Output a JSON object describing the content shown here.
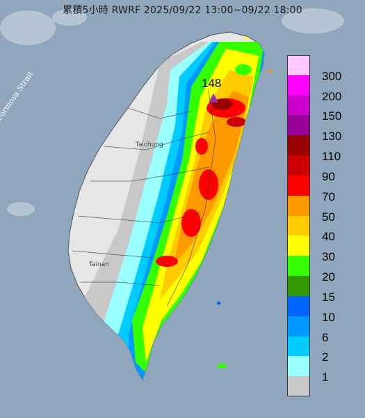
{
  "title": "累積5小時 RWRF 2025/09/22 13:00~09/22 18:00",
  "water_label": "Formosa Strait",
  "max_value": "148",
  "cities": [
    "Taichung",
    "Tainan"
  ],
  "legend": {
    "unit_values": [
      "300",
      "200",
      "150",
      "130",
      "110",
      "90",
      "70",
      "50",
      "40",
      "30",
      "20",
      "15",
      "10",
      "6",
      "2",
      "1"
    ],
    "colors": [
      "#ffc6ff",
      "#ff00ff",
      "#cc00cc",
      "#990099",
      "#990000",
      "#cc0000",
      "#ff0000",
      "#ff9900",
      "#ffcc00",
      "#ffff00",
      "#33ff00",
      "#339900",
      "#0066ff",
      "#0099ff",
      "#00ccff",
      "#99ffff",
      "#c8c8c8"
    ]
  },
  "colors": {
    "sea": "#8fa6bd",
    "land": "#e6e6e6",
    "max_marker": "#9a30b0"
  }
}
